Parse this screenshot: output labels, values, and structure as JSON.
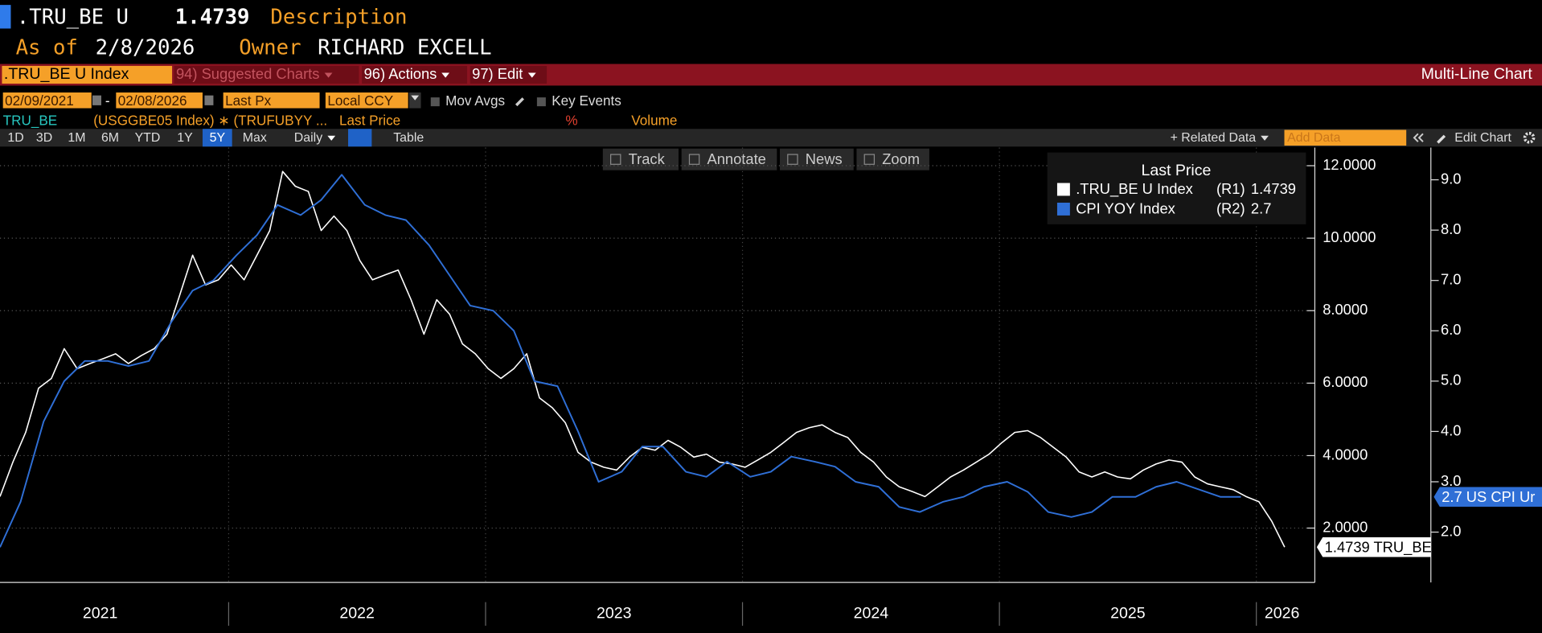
{
  "header": {
    "ticker": ".TRU_BE U",
    "price": "1.4739",
    "description_label": "Description",
    "as_of_label": "As of",
    "as_of": "2/8/2026",
    "owner_label": "Owner",
    "owner": "RICHARD EXCELL"
  },
  "toolbar": {
    "security": ".TRU_BE U Index",
    "menu": [
      "94) Suggested Charts",
      "96) Actions",
      "97) Edit"
    ],
    "chart_kind": "Multi-Line Chart"
  },
  "controls": {
    "start_date": "02/09/2021",
    "separator": "-",
    "end_date": "02/08/2026",
    "field": "Last Px",
    "currency": "Local CCY",
    "options": [
      "Mov Avgs",
      "Key Events"
    ]
  },
  "study_row": {
    "name": "TRU_BE",
    "expression": "(USGGBE05 Index) ∗ (TRUFUBYY ...",
    "field": "Last Price",
    "percent": "%",
    "volume": "Volume"
  },
  "periods": [
    "1D",
    "3D",
    "1M",
    "6M",
    "YTD",
    "1Y",
    "5Y",
    "Max"
  ],
  "active_period": "5Y",
  "frequency": "Daily",
  "table_view": "Table",
  "right_tools": {
    "related": "+ Related Data",
    "add_data": "Add Data",
    "edit_chart": "Edit Chart"
  },
  "chart_tools": [
    "Track",
    "Annotate",
    "News",
    "Zoom"
  ],
  "chart_data": {
    "type": "line",
    "legend_title": "Last Price",
    "grid": true,
    "xlim": [
      2021.11,
      2026.22
    ],
    "xticks": [
      {
        "value": 2021.5,
        "label": "2021"
      },
      {
        "value": 2022.5,
        "label": "2022"
      },
      {
        "value": 2023.5,
        "label": "2023"
      },
      {
        "value": 2024.5,
        "label": "2024"
      },
      {
        "value": 2025.5,
        "label": "2025"
      },
      {
        "value": 2026.1,
        "label": "2026"
      }
    ],
    "ylim": [
      0.5,
      12.5
    ],
    "yticks": [
      {
        "value": 2,
        "label": "2.0000"
      },
      {
        "value": 4,
        "label": "4.0000"
      },
      {
        "value": 6,
        "label": "6.0000"
      },
      {
        "value": 8,
        "label": "8.0000"
      },
      {
        "value": 10,
        "label": "10.0000"
      },
      {
        "value": 12,
        "label": "12.0000"
      }
    ],
    "y2lim": [
      1,
      9.64
    ],
    "y2ticks": [
      {
        "value": 2,
        "label": "2.0"
      },
      {
        "value": 3,
        "label": "3.0"
      },
      {
        "value": 4,
        "label": "4.0"
      },
      {
        "value": 5,
        "label": "5.0"
      },
      {
        "value": 6,
        "label": "6.0"
      },
      {
        "value": 7,
        "label": "7.0"
      },
      {
        "value": 8,
        "label": "8.0"
      },
      {
        "value": 9,
        "label": "9.0"
      }
    ],
    "series": [
      {
        "name": ".TRU_BE U Index",
        "axis_tag": "(R1)",
        "last_label": "1.4739",
        "end_tag": "1.4739 TRU_BE",
        "color": "#ffffff",
        "x": [
          2021.11,
          2021.16,
          2021.21,
          2021.26,
          2021.31,
          2021.36,
          2021.41,
          2021.46,
          2021.51,
          2021.56,
          2021.61,
          2021.66,
          2021.71,
          2021.76,
          2021.81,
          2021.86,
          2021.91,
          2021.96,
          2022.01,
          2022.06,
          2022.11,
          2022.16,
          2022.21,
          2022.26,
          2022.31,
          2022.36,
          2022.41,
          2022.46,
          2022.51,
          2022.56,
          2022.61,
          2022.66,
          2022.71,
          2022.76,
          2022.81,
          2022.86,
          2022.91,
          2022.96,
          2023.01,
          2023.06,
          2023.11,
          2023.16,
          2023.21,
          2023.26,
          2023.31,
          2023.36,
          2023.41,
          2023.46,
          2023.51,
          2023.56,
          2023.61,
          2023.66,
          2023.71,
          2023.76,
          2023.81,
          2023.86,
          2023.91,
          2023.96,
          2024.01,
          2024.06,
          2024.11,
          2024.16,
          2024.21,
          2024.26,
          2024.31,
          2024.36,
          2024.41,
          2024.46,
          2024.51,
          2024.56,
          2024.61,
          2024.66,
          2024.71,
          2024.76,
          2024.81,
          2024.86,
          2024.91,
          2024.96,
          2025.01,
          2025.06,
          2025.11,
          2025.16,
          2025.21,
          2025.26,
          2025.31,
          2025.36,
          2025.41,
          2025.46,
          2025.51,
          2025.56,
          2025.61,
          2025.66,
          2025.71,
          2025.76,
          2025.81,
          2025.86,
          2025.91,
          2025.96,
          2026.01,
          2026.06,
          2026.11
        ],
        "values": [
          2.87,
          3.82,
          4.64,
          5.86,
          6.13,
          6.95,
          6.4,
          6.54,
          6.67,
          6.81,
          6.54,
          6.76,
          6.95,
          7.35,
          8.44,
          9.53,
          8.71,
          8.85,
          9.26,
          8.85,
          9.53,
          10.21,
          11.84,
          11.43,
          11.29,
          10.21,
          10.61,
          10.21,
          9.39,
          8.85,
          8.99,
          9.12,
          8.3,
          7.35,
          8.3,
          7.9,
          7.08,
          6.81,
          6.4,
          6.13,
          6.4,
          6.81,
          5.59,
          5.32,
          4.91,
          4.09,
          3.82,
          3.68,
          3.6,
          3.96,
          4.23,
          4.15,
          4.42,
          4.23,
          3.96,
          4.04,
          3.82,
          3.77,
          3.68,
          3.88,
          4.09,
          4.36,
          4.64,
          4.77,
          4.85,
          4.64,
          4.5,
          4.09,
          3.82,
          3.41,
          3.14,
          3.01,
          2.87,
          3.14,
          3.41,
          3.6,
          3.82,
          4.04,
          4.36,
          4.64,
          4.69,
          4.5,
          4.23,
          3.96,
          3.55,
          3.41,
          3.55,
          3.41,
          3.36,
          3.6,
          3.77,
          3.88,
          3.82,
          3.41,
          3.22,
          3.14,
          3.06,
          2.87,
          2.73,
          2.19,
          1.4739
        ]
      },
      {
        "name": "CPI YOY Index",
        "axis_tag": "(R2)",
        "last_label": "2.7",
        "end_tag": "2.7 US CPI Ur",
        "color": "#2f6fd6",
        "axis": "y2",
        "x": [
          2021.11,
          2021.19,
          2021.28,
          2021.36,
          2021.44,
          2021.53,
          2021.61,
          2021.69,
          2021.78,
          2021.86,
          2021.94,
          2022.03,
          2022.11,
          2022.19,
          2022.28,
          2022.36,
          2022.44,
          2022.53,
          2022.61,
          2022.69,
          2022.78,
          2022.86,
          2022.94,
          2023.03,
          2023.11,
          2023.19,
          2023.28,
          2023.36,
          2023.44,
          2023.53,
          2023.61,
          2023.69,
          2023.78,
          2023.86,
          2023.94,
          2024.03,
          2024.11,
          2024.19,
          2024.28,
          2024.36,
          2024.44,
          2024.53,
          2024.61,
          2024.69,
          2024.78,
          2024.86,
          2024.94,
          2025.03,
          2025.11,
          2025.19,
          2025.28,
          2025.36,
          2025.44,
          2025.53,
          2025.61,
          2025.69,
          2025.86,
          2025.94
        ],
        "values": [
          1.7,
          2.6,
          4.2,
          5.0,
          5.4,
          5.4,
          5.3,
          5.4,
          6.2,
          6.8,
          7.0,
          7.5,
          7.9,
          8.5,
          8.3,
          8.6,
          9.1,
          8.5,
          8.3,
          8.2,
          7.7,
          7.1,
          6.5,
          6.4,
          6.0,
          5.0,
          4.9,
          4.0,
          3.0,
          3.2,
          3.7,
          3.7,
          3.2,
          3.1,
          3.4,
          3.1,
          3.2,
          3.5,
          3.4,
          3.3,
          3.0,
          2.9,
          2.5,
          2.4,
          2.6,
          2.7,
          2.9,
          3.0,
          2.8,
          2.4,
          2.3,
          2.4,
          2.7,
          2.7,
          2.9,
          3.0,
          2.7,
          2.7
        ]
      }
    ]
  }
}
